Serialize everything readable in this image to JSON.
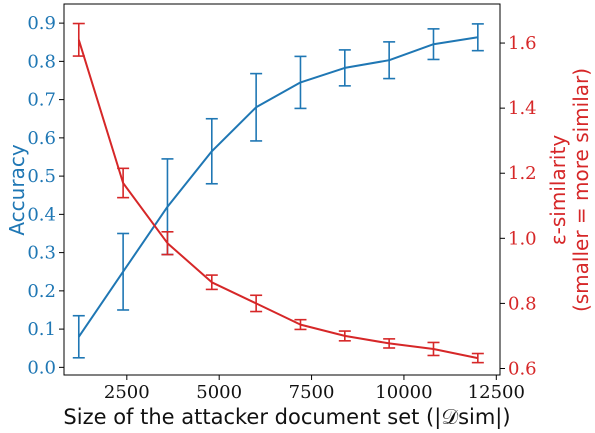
{
  "chart_data": {
    "type": "line",
    "title": "",
    "xlabel": "Size of the attacker document set (|𝒟sim|)",
    "xlim": [
      800,
      12600
    ],
    "xticks": [
      2500,
      5000,
      7500,
      10000,
      12500
    ],
    "x": [
      1200,
      2400,
      3600,
      4800,
      6000,
      7200,
      8400,
      9600,
      10800,
      12000
    ],
    "left_axis": {
      "label": "Accuracy",
      "color": "#1f77b4",
      "ylim": [
        -0.02,
        0.95
      ],
      "ticks": [
        0.0,
        0.1,
        0.2,
        0.3,
        0.4,
        0.5,
        0.6,
        0.7,
        0.8,
        0.9
      ]
    },
    "right_axis": {
      "label_line1": "ε-similarity",
      "label_line2": "(smaller = more similar)",
      "color": "#d62728",
      "ylim": [
        0.58,
        1.72
      ],
      "ticks": [
        0.6,
        0.8,
        1.0,
        1.2,
        1.4,
        1.6
      ]
    },
    "series": [
      {
        "axis": "left",
        "color": "#1f77b4",
        "values": [
          0.08,
          0.25,
          0.42,
          0.565,
          0.68,
          0.745,
          0.783,
          0.803,
          0.845,
          0.863
        ],
        "err": [
          0.055,
          0.1,
          0.125,
          0.085,
          0.088,
          0.068,
          0.047,
          0.048,
          0.04,
          0.035
        ]
      },
      {
        "axis": "right",
        "color": "#d62728",
        "values": [
          1.61,
          1.17,
          0.985,
          0.865,
          0.8,
          0.735,
          0.7,
          0.677,
          0.66,
          0.632
        ],
        "err": [
          0.05,
          0.045,
          0.035,
          0.022,
          0.025,
          0.015,
          0.015,
          0.014,
          0.02,
          0.014
        ]
      }
    ],
    "grid": false,
    "legend": "none"
  }
}
